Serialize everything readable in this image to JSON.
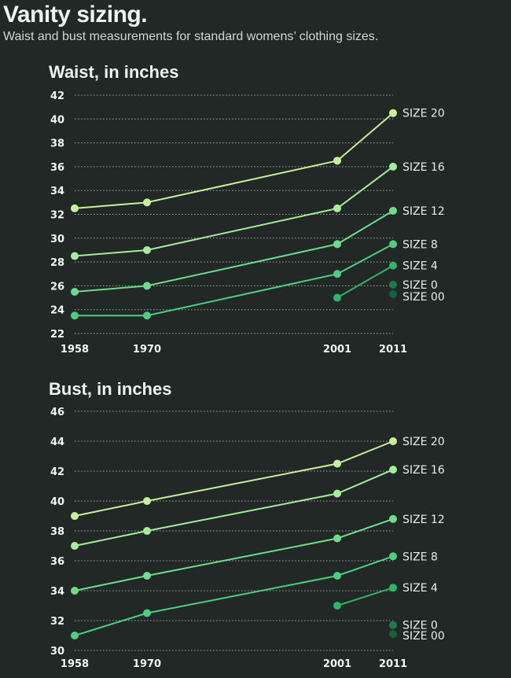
{
  "title": "Vanity sizing.",
  "subtitle": "Waist and bust measurements for standard womens’ clothing sizes.",
  "colors": {
    "SIZE 20": "#c7f09a",
    "SIZE 16": "#a5ec9c",
    "SIZE 12": "#6fdc8c",
    "SIZE 8": "#4ccf80",
    "SIZE 4": "#2fb46a",
    "SIZE 0": "#1e7a4c",
    "SIZE 00": "#1a5e40"
  },
  "chart_data": [
    {
      "type": "line",
      "title": "Waist, in inches",
      "x": [
        1958,
        1970,
        2001,
        2011
      ],
      "x_labels": [
        "1958",
        "1970",
        "2001",
        "2011"
      ],
      "ylim": [
        22,
        42
      ],
      "y_ticks": [
        22,
        24,
        26,
        28,
        30,
        32,
        34,
        36,
        38,
        40,
        42
      ],
      "series": [
        {
          "name": "SIZE 20",
          "values": [
            32.5,
            33,
            36.5,
            40.5
          ]
        },
        {
          "name": "SIZE 16",
          "values": [
            28.5,
            29,
            32.5,
            36
          ]
        },
        {
          "name": "SIZE 12",
          "values": [
            25.5,
            26,
            29.5,
            32.3
          ]
        },
        {
          "name": "SIZE 8",
          "values": [
            23.5,
            23.5,
            27,
            29.5
          ]
        },
        {
          "name": "SIZE 4",
          "values": [
            null,
            null,
            25,
            27.7
          ]
        },
        {
          "name": "SIZE 0",
          "values": [
            null,
            null,
            null,
            26.1
          ]
        },
        {
          "name": "SIZE 00",
          "values": [
            null,
            null,
            null,
            25.3
          ]
        }
      ]
    },
    {
      "type": "line",
      "title": "Bust, in inches",
      "x": [
        1958,
        1970,
        2001,
        2011
      ],
      "x_labels": [
        "1958",
        "1970",
        "2001",
        "2011"
      ],
      "ylim": [
        30,
        46
      ],
      "y_ticks": [
        30,
        32,
        34,
        36,
        38,
        40,
        42,
        44,
        46
      ],
      "series": [
        {
          "name": "SIZE 20",
          "values": [
            39,
            40,
            42.5,
            44
          ]
        },
        {
          "name": "SIZE 16",
          "values": [
            37,
            38,
            40.5,
            42.1
          ]
        },
        {
          "name": "SIZE 12",
          "values": [
            34,
            35,
            37.5,
            38.8
          ]
        },
        {
          "name": "SIZE 8",
          "values": [
            31,
            32.5,
            35,
            36.3
          ]
        },
        {
          "name": "SIZE 4",
          "values": [
            null,
            null,
            33,
            34.2
          ]
        },
        {
          "name": "SIZE 0",
          "values": [
            null,
            null,
            null,
            31.7
          ]
        },
        {
          "name": "SIZE 00",
          "values": [
            null,
            null,
            null,
            31.1
          ]
        }
      ]
    }
  ]
}
